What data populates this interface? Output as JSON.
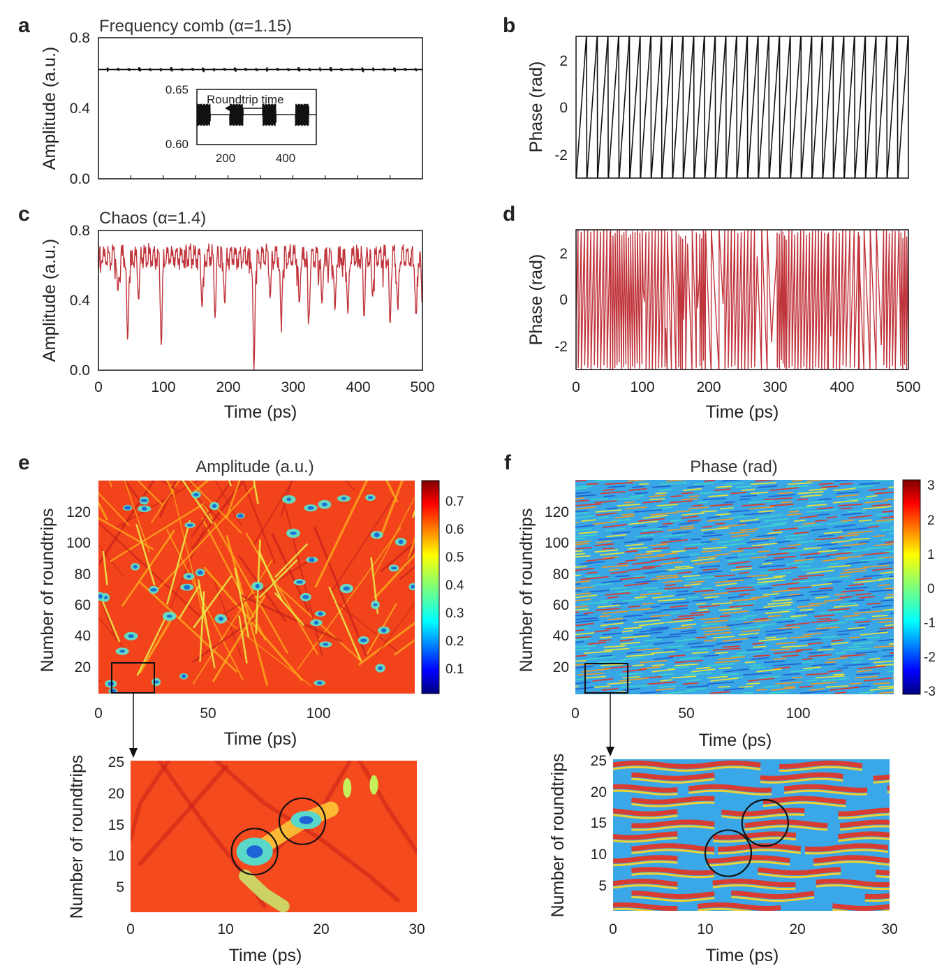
{
  "panel_labels": [
    "a",
    "b",
    "c",
    "d",
    "e",
    "f"
  ],
  "colors": {
    "comb": "#111111",
    "chaos": "#c0343b",
    "frame": "#111111"
  },
  "colormap": "jet",
  "chart_data": [
    {
      "id": "a",
      "type": "line",
      "title": "Frequency comb (α=1.15)",
      "xlabel": "",
      "ylabel": "Amplitude (a.u.)",
      "xlim": [
        0,
        500
      ],
      "ylim": [
        0,
        0.8
      ],
      "yticks": [
        "0.0",
        "0.4",
        "0.8"
      ],
      "series": [
        {
          "values_mean": 0.62,
          "ripple": 0.01,
          "color": "#111111"
        }
      ],
      "inset": {
        "annotation": "Roundtrip time",
        "xlim": [
          100,
          500
        ],
        "ylim": [
          0.6,
          0.65
        ],
        "xticks": [
          "200",
          "400"
        ],
        "yticks": [
          "0.65",
          "0.60"
        ]
      }
    },
    {
      "id": "b",
      "type": "line",
      "xlabel": "",
      "ylabel": "Phase (rad)",
      "xlim": [
        0,
        500
      ],
      "ylim": [
        -3,
        3
      ],
      "yticks": [
        "2",
        "0",
        "-2"
      ],
      "series": [
        {
          "shape": "sawtooth",
          "wraps": 31,
          "color": "#111111"
        }
      ]
    },
    {
      "id": "c",
      "type": "line",
      "title": "Chaos (α=1.4)",
      "xlabel": "Time (ps)",
      "ylabel": "Amplitude (a.u.)",
      "xlim": [
        0,
        500
      ],
      "ylim": [
        0,
        0.8
      ],
      "xticks": [
        "0",
        "100",
        "200",
        "300",
        "400",
        "500"
      ],
      "yticks": [
        "0.0",
        "0.4",
        "0.8"
      ],
      "series": [
        {
          "baseline": 0.65,
          "color": "#c0343b",
          "dips": [
            [
              45,
              0.17
            ],
            [
              97,
              0.14
            ],
            [
              240,
              0.0
            ],
            [
              30,
              0.45
            ],
            [
              62,
              0.4
            ],
            [
              160,
              0.36
            ],
            [
              180,
              0.3
            ],
            [
              195,
              0.38
            ],
            [
              265,
              0.41
            ],
            [
              282,
              0.29
            ],
            [
              310,
              0.38
            ],
            [
              325,
              0.3
            ],
            [
              345,
              0.38
            ],
            [
              365,
              0.34
            ],
            [
              385,
              0.32
            ],
            [
              410,
              0.3
            ],
            [
              423,
              0.42
            ],
            [
              450,
              0.26
            ],
            [
              462,
              0.36
            ],
            [
              490,
              0.31
            ],
            [
              500,
              0.34
            ]
          ]
        }
      ]
    },
    {
      "id": "d",
      "type": "line",
      "xlabel": "Time (ps)",
      "ylabel": "Phase (rad)",
      "xlim": [
        0,
        500
      ],
      "ylim": [
        -3,
        3
      ],
      "xticks": [
        "0",
        "100",
        "200",
        "300",
        "400",
        "500"
      ],
      "yticks": [
        "2",
        "0",
        "-2"
      ],
      "series": [
        {
          "shape": "irregular wrapped phase",
          "color": "#c0343b"
        }
      ]
    },
    {
      "id": "e",
      "type": "heatmap",
      "title": "Amplitude (a.u.)",
      "xlabel": "Time (ps)",
      "ylabel": "Number of roundtrips",
      "xlim": [
        0,
        142
      ],
      "ylim": [
        0,
        140
      ],
      "xticks": [
        "0",
        "50",
        "100"
      ],
      "yticks": [
        "20",
        "40",
        "60",
        "80",
        "100",
        "120"
      ],
      "colorbar": {
        "range": [
          0,
          0.77
        ],
        "ticks": [
          "0.7",
          "0.6",
          "0.5",
          "0.4",
          "0.3",
          "0.2",
          "0.1"
        ]
      },
      "zoom": {
        "xlabel": "Time (ps)",
        "ylabel": "Number of roundtrips",
        "xlim": [
          0,
          30
        ],
        "ylim": [
          0,
          25
        ],
        "xticks": [
          "0",
          "10",
          "20",
          "30"
        ],
        "yticks": [
          "25",
          "20",
          "15",
          "10",
          "5"
        ],
        "circles": [
          [
            13,
            10
          ],
          [
            18,
            15
          ]
        ]
      }
    },
    {
      "id": "f",
      "type": "heatmap",
      "title": "Phase (rad)",
      "xlabel": "Time (ps)",
      "ylabel": "Number of roundtrips",
      "xlim": [
        0,
        142
      ],
      "ylim": [
        0,
        140
      ],
      "xticks": [
        "0",
        "50",
        "100"
      ],
      "yticks": [
        "20",
        "40",
        "60",
        "80",
        "100",
        "120"
      ],
      "colorbar": {
        "range": [
          -3.14,
          3.14
        ],
        "ticks": [
          "3",
          "2",
          "1",
          "0",
          "-1",
          "-2",
          "-3"
        ]
      },
      "zoom": {
        "xlabel": "Time (ps)",
        "ylabel": "Number of roundtrips",
        "xlim": [
          0,
          30
        ],
        "ylim": [
          0,
          25
        ],
        "xticks": [
          "0",
          "10",
          "20",
          "30"
        ],
        "yticks": [
          "25",
          "20",
          "15",
          "10",
          "5"
        ],
        "circles": [
          [
            12.5,
            9.5
          ],
          [
            16.5,
            14.5
          ]
        ]
      }
    }
  ]
}
